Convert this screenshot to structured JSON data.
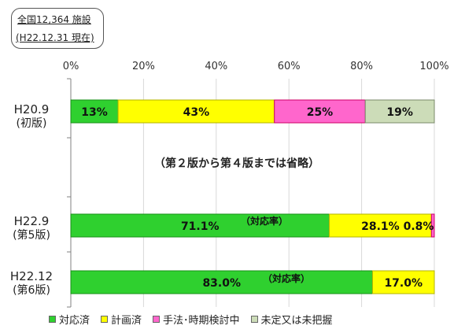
{
  "note": {
    "line1": "全国12,364 施設",
    "line2": "(H22.12.31 現在)"
  },
  "omitted_text": "（第２版から第４版までは省略）",
  "colors": {
    "done": "#2fd02f",
    "planned": "#ffff00",
    "considering": "#ff66cc",
    "unknown": "#ccdcb8",
    "grid": "#d9d9d9",
    "axis": "#808080"
  },
  "legend": [
    {
      "label": "対応済",
      "color": "#2fd02f"
    },
    {
      "label": "計画済",
      "color": "#ffff00"
    },
    {
      "label": "手法･時期検討中",
      "color": "#ff66cc"
    },
    {
      "label": "未定又は未把握",
      "color": "#ccdcb8"
    }
  ],
  "chart_data": {
    "type": "bar",
    "orientation": "horizontal",
    "stacked": true,
    "xlim": [
      0,
      100
    ],
    "xticks": [
      "0%",
      "20%",
      "40%",
      "60%",
      "80%",
      "100%"
    ],
    "categories": [
      {
        "line1": "H20.9",
        "line2": "(初版)"
      },
      {
        "line1": "H22.9",
        "line2": "(第5版)"
      },
      {
        "line1": "H22.12",
        "line2": "(第6版)"
      }
    ],
    "series": [
      {
        "name": "対応済",
        "color": "#2fd02f",
        "values": [
          13,
          71.1,
          83.0
        ],
        "labels": [
          "13%",
          "71.1%",
          "83.0%"
        ]
      },
      {
        "name": "計画済",
        "color": "#ffff00",
        "values": [
          43,
          28.1,
          17.0
        ],
        "labels": [
          "43%",
          "28.1%",
          "17.0%"
        ]
      },
      {
        "name": "手法･時期検討中",
        "color": "#ff66cc",
        "values": [
          25,
          0.8,
          0
        ],
        "labels": [
          "25%",
          "0.8%",
          ""
        ]
      },
      {
        "name": "未定又は未把握",
        "color": "#ccdcb8",
        "values": [
          19,
          0,
          0
        ],
        "labels": [
          "19%",
          "",
          ""
        ]
      }
    ],
    "annotations": [
      "（対応率）",
      "（対応率）"
    ],
    "grid": true,
    "legend_position": "bottom"
  }
}
